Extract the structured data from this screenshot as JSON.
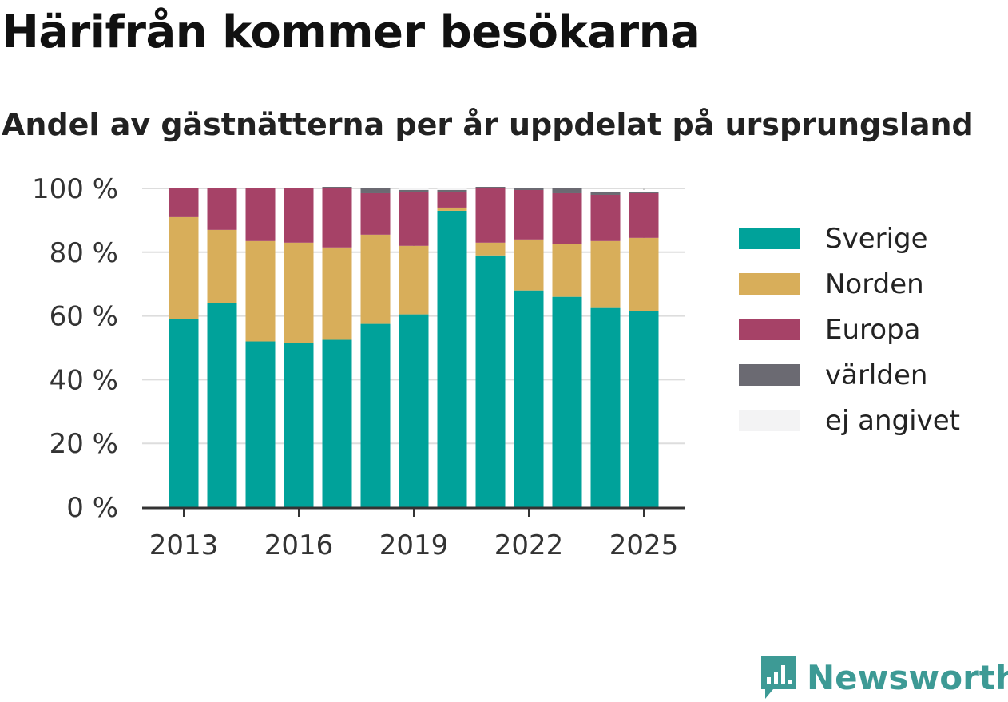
{
  "chart_data": {
    "type": "bar",
    "stacked": true,
    "title": "Härifrån kommer besökarna",
    "subtitle": "Andel av gästnätterna per år uppdelat på ursprungsland",
    "categories": [
      "2013",
      "2014",
      "2015",
      "2016",
      "2017",
      "2018",
      "2019",
      "2020",
      "2021",
      "2022",
      "2023",
      "2024",
      "2025"
    ],
    "x_tick_labels": [
      "2013",
      "2016",
      "2019",
      "2022",
      "2025"
    ],
    "y_tick_labels": [
      "0 %",
      "20 %",
      "40 %",
      "60 %",
      "80 %",
      "100 %"
    ],
    "ylim": [
      0,
      100
    ],
    "grid": true,
    "legend_position": "right",
    "series": [
      {
        "name": "Sverige",
        "color": "#00a29a",
        "values": [
          59,
          64,
          52,
          51.5,
          52.5,
          57.5,
          60.5,
          93,
          79,
          68,
          66,
          62.5,
          61.5
        ]
      },
      {
        "name": "Norden",
        "color": "#d8ae5a",
        "values": [
          32,
          23,
          31.5,
          31.5,
          29,
          28,
          21.5,
          1,
          4,
          16,
          16.5,
          21,
          23
        ]
      },
      {
        "name": "Europa",
        "color": "#a64267",
        "values": [
          9,
          13,
          16.5,
          17,
          18.5,
          13,
          17,
          5,
          17,
          15.5,
          16,
          14.5,
          14
        ]
      },
      {
        "name": "världen",
        "color": "#6b6a72",
        "values": [
          0,
          0,
          0,
          0,
          0.5,
          1.5,
          0.5,
          0.5,
          0.5,
          0.5,
          1.5,
          1,
          0.5
        ]
      },
      {
        "name": "ej angivet",
        "color": "#f3f3f4",
        "values": [
          0,
          0,
          0,
          0,
          0,
          0,
          0.5,
          0.5,
          0,
          0,
          0,
          0,
          0
        ]
      }
    ]
  },
  "logo": {
    "text": "Newsworthy",
    "icon": "newsworthy-logo-icon",
    "color": "#3d9a95"
  }
}
